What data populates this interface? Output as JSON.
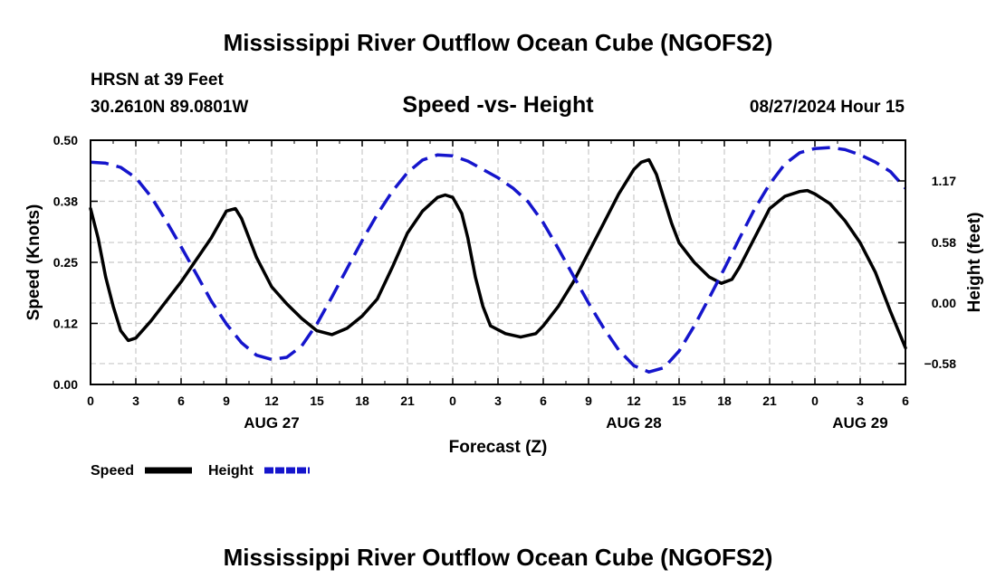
{
  "title": "Mississippi River Outflow Ocean Cube (NGOFS2)",
  "station": "HRSN at 39 Feet",
  "coords": "30.2610N  89.0801W",
  "subtitle": "Speed -vs- Height",
  "datetime": "08/27/2024 Hour 15",
  "footer_title": "Mississippi River Outflow Ocean Cube (NGOFS2)",
  "legend": [
    {
      "label": "Speed",
      "color": "#000000",
      "dash": "solid"
    },
    {
      "label": "Height",
      "color": "#1515cc",
      "dash": "dashed"
    }
  ],
  "chart_data": {
    "type": "line",
    "xlabel": "Forecast (Z)",
    "ylabel_left": "Speed (Knots)",
    "ylabel_right": "Height (feet)",
    "x_range_hours": [
      0,
      54
    ],
    "x_ticks": [
      {
        "h": 0,
        "label": "0"
      },
      {
        "h": 3,
        "label": "3"
      },
      {
        "h": 6,
        "label": "6"
      },
      {
        "h": 9,
        "label": "9"
      },
      {
        "h": 12,
        "label": "12"
      },
      {
        "h": 15,
        "label": "15"
      },
      {
        "h": 18,
        "label": "18"
      },
      {
        "h": 21,
        "label": "21"
      },
      {
        "h": 24,
        "label": "0"
      },
      {
        "h": 27,
        "label": "3"
      },
      {
        "h": 30,
        "label": "6"
      },
      {
        "h": 33,
        "label": "9"
      },
      {
        "h": 36,
        "label": "12"
      },
      {
        "h": 39,
        "label": "15"
      },
      {
        "h": 42,
        "label": "18"
      },
      {
        "h": 45,
        "label": "21"
      },
      {
        "h": 48,
        "label": "0"
      },
      {
        "h": 51,
        "label": "3"
      },
      {
        "h": 54,
        "label": "6"
      }
    ],
    "date_labels": [
      {
        "h": 12,
        "label": "AUG 27"
      },
      {
        "h": 36,
        "label": "AUG 28"
      },
      {
        "h": 51,
        "label": "AUG 29"
      }
    ],
    "y_left": {
      "min": 0,
      "max": 0.5,
      "ticks": [
        {
          "v": 0,
          "label": "0.00"
        },
        {
          "v": 0.125,
          "label": "0.12"
        },
        {
          "v": 0.25,
          "label": "0.25"
        },
        {
          "v": 0.375,
          "label": "0.38"
        },
        {
          "v": 0.5,
          "label": "0.50"
        }
      ]
    },
    "y_right": {
      "min": -0.78,
      "max": 1.56,
      "ticks": [
        {
          "v": -0.58,
          "label": "−0.58"
        },
        {
          "v": 0.0,
          "label": "0.00"
        },
        {
          "v": 0.58,
          "label": "0.58"
        },
        {
          "v": 1.17,
          "label": "1.17"
        }
      ]
    },
    "series": [
      {
        "name": "Speed",
        "axis": "left",
        "color": "#000000",
        "dash": "solid",
        "points": [
          [
            0,
            0.36
          ],
          [
            0.5,
            0.3
          ],
          [
            1,
            0.22
          ],
          [
            1.5,
            0.16
          ],
          [
            2,
            0.11
          ],
          [
            2.5,
            0.09
          ],
          [
            3,
            0.095
          ],
          [
            4,
            0.13
          ],
          [
            6,
            0.21
          ],
          [
            8,
            0.3
          ],
          [
            9,
            0.355
          ],
          [
            9.6,
            0.36
          ],
          [
            10,
            0.34
          ],
          [
            11,
            0.26
          ],
          [
            12,
            0.2
          ],
          [
            13,
            0.165
          ],
          [
            14,
            0.135
          ],
          [
            15,
            0.11
          ],
          [
            16,
            0.102
          ],
          [
            17,
            0.115
          ],
          [
            18,
            0.14
          ],
          [
            19,
            0.175
          ],
          [
            20,
            0.24
          ],
          [
            21,
            0.31
          ],
          [
            22,
            0.355
          ],
          [
            23,
            0.383
          ],
          [
            23.5,
            0.388
          ],
          [
            24,
            0.383
          ],
          [
            24.6,
            0.35
          ],
          [
            25,
            0.3
          ],
          [
            25.5,
            0.22
          ],
          [
            26,
            0.16
          ],
          [
            26.5,
            0.12
          ],
          [
            27.5,
            0.104
          ],
          [
            28.5,
            0.097
          ],
          [
            29.5,
            0.104
          ],
          [
            30,
            0.12
          ],
          [
            31,
            0.16
          ],
          [
            32,
            0.21
          ],
          [
            33,
            0.27
          ],
          [
            34,
            0.33
          ],
          [
            35,
            0.39
          ],
          [
            36,
            0.44
          ],
          [
            36.5,
            0.455
          ],
          [
            37,
            0.46
          ],
          [
            37.5,
            0.43
          ],
          [
            38,
            0.38
          ],
          [
            38.5,
            0.33
          ],
          [
            39,
            0.29
          ],
          [
            40,
            0.25
          ],
          [
            41,
            0.22
          ],
          [
            41.8,
            0.207
          ],
          [
            42.5,
            0.215
          ],
          [
            43,
            0.24
          ],
          [
            44,
            0.3
          ],
          [
            45,
            0.36
          ],
          [
            46,
            0.385
          ],
          [
            47,
            0.395
          ],
          [
            47.5,
            0.397
          ],
          [
            48,
            0.39
          ],
          [
            49,
            0.37
          ],
          [
            50,
            0.335
          ],
          [
            51,
            0.29
          ],
          [
            52,
            0.23
          ],
          [
            53,
            0.15
          ],
          [
            54,
            0.075
          ]
        ]
      },
      {
        "name": "Height",
        "axis": "right",
        "color": "#1515cc",
        "dash": "dashed",
        "points": [
          [
            0,
            1.35
          ],
          [
            1,
            1.34
          ],
          [
            2,
            1.3
          ],
          [
            3,
            1.2
          ],
          [
            4,
            1.02
          ],
          [
            5,
            0.79
          ],
          [
            6,
            0.54
          ],
          [
            7,
            0.28
          ],
          [
            8,
            0.02
          ],
          [
            9,
            -0.2
          ],
          [
            10,
            -0.38
          ],
          [
            11,
            -0.5
          ],
          [
            12,
            -0.54
          ],
          [
            13,
            -0.52
          ],
          [
            14,
            -0.41
          ],
          [
            15,
            -0.2
          ],
          [
            16,
            0.06
          ],
          [
            17,
            0.33
          ],
          [
            18,
            0.6
          ],
          [
            19,
            0.85
          ],
          [
            20,
            1.07
          ],
          [
            21,
            1.25
          ],
          [
            22,
            1.37
          ],
          [
            23,
            1.42
          ],
          [
            24,
            1.41
          ],
          [
            25,
            1.36
          ],
          [
            26,
            1.28
          ],
          [
            27,
            1.2
          ],
          [
            28,
            1.1
          ],
          [
            29,
            0.97
          ],
          [
            30,
            0.77
          ],
          [
            31,
            0.52
          ],
          [
            32,
            0.26
          ],
          [
            33,
            0.0
          ],
          [
            34,
            -0.24
          ],
          [
            35,
            -0.45
          ],
          [
            36,
            -0.6
          ],
          [
            37,
            -0.66
          ],
          [
            38,
            -0.62
          ],
          [
            39,
            -0.46
          ],
          [
            40,
            -0.22
          ],
          [
            41,
            0.05
          ],
          [
            42,
            0.33
          ],
          [
            43,
            0.62
          ],
          [
            44,
            0.9
          ],
          [
            45,
            1.14
          ],
          [
            46,
            1.33
          ],
          [
            47,
            1.44
          ],
          [
            48,
            1.48
          ],
          [
            49,
            1.49
          ],
          [
            50,
            1.47
          ],
          [
            51,
            1.42
          ],
          [
            52,
            1.35
          ],
          [
            53,
            1.26
          ],
          [
            54,
            1.1
          ]
        ]
      }
    ]
  }
}
